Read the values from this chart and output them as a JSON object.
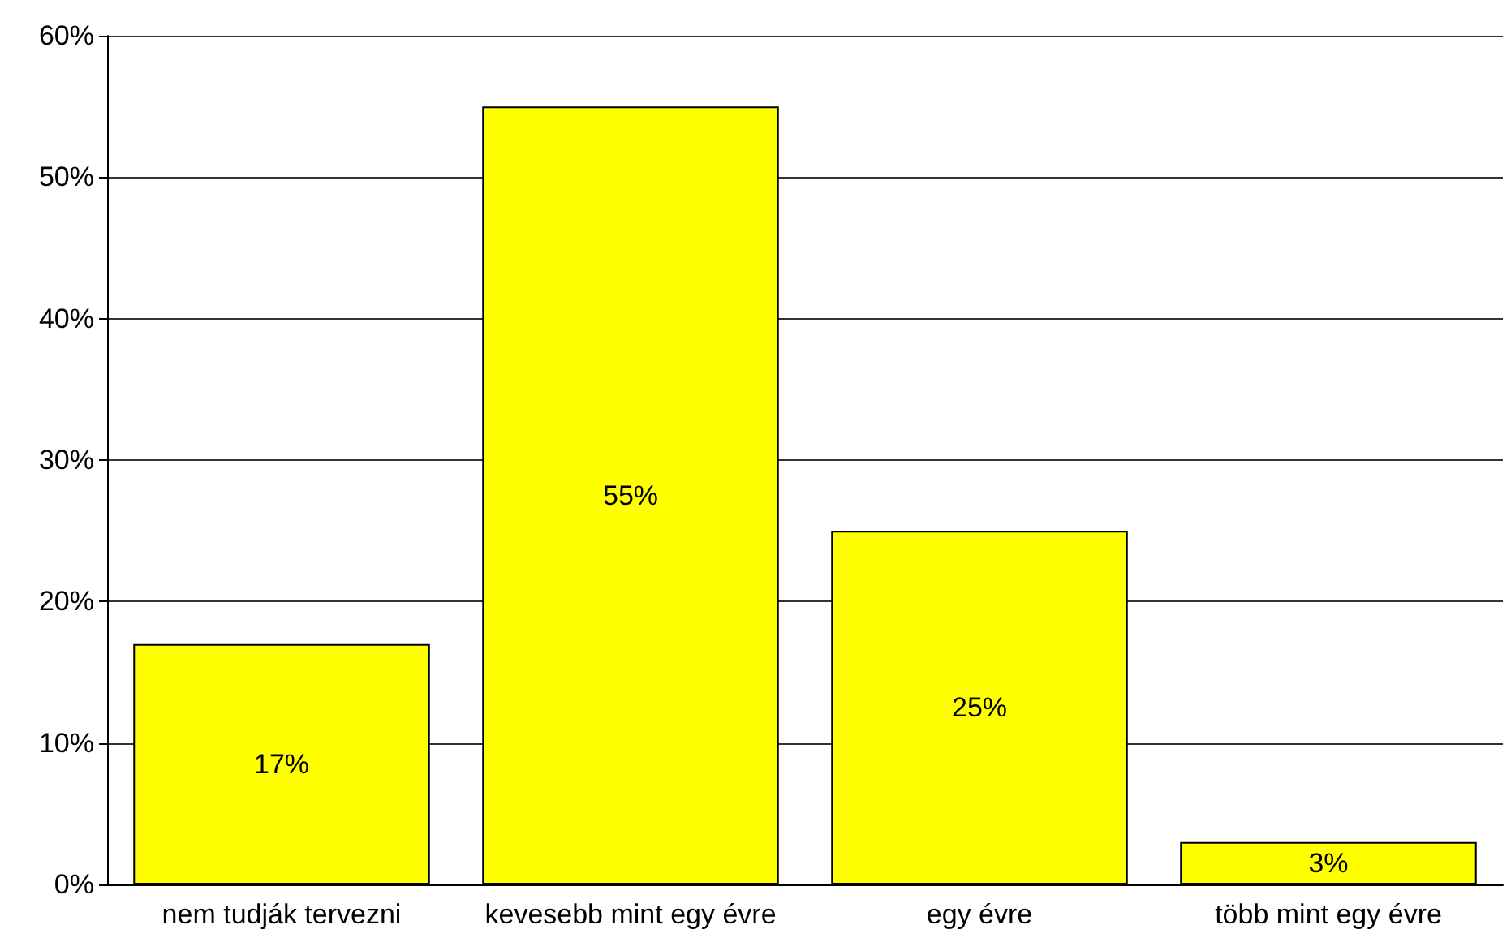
{
  "chart_data": {
    "type": "bar",
    "categories": [
      "nem tudják tervezni",
      "kevesebb mint egy évre",
      "egy évre",
      "több mint egy évre"
    ],
    "values": [
      17,
      55,
      25,
      3
    ],
    "color": "#ffff00",
    "value_labels": [
      "17%",
      "55%",
      "25%",
      "3%"
    ],
    "ylim": [
      0,
      60
    ],
    "yticks": [
      {
        "value": 0,
        "label": "0%"
      },
      {
        "value": 10,
        "label": "10%"
      },
      {
        "value": 20,
        "label": "20%"
      },
      {
        "value": 30,
        "label": "30%"
      },
      {
        "value": 40,
        "label": "40%"
      },
      {
        "value": 50,
        "label": "50%"
      },
      {
        "value": 60,
        "label": "60%"
      }
    ],
    "grid": "y"
  }
}
